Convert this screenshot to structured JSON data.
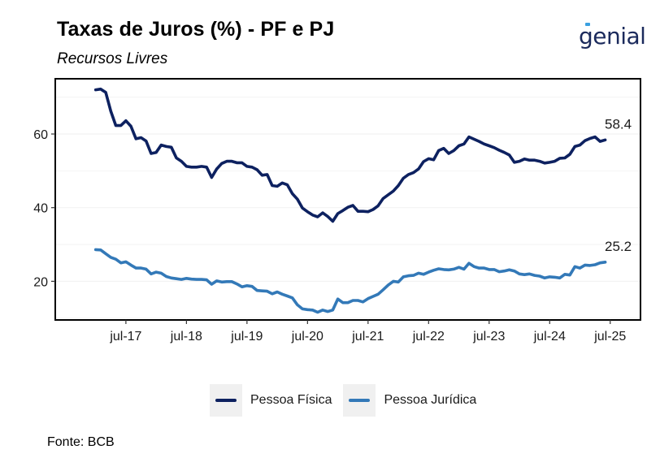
{
  "header": {
    "title": "Taxas de Juros (%) - PF e PJ",
    "subtitle": "Recursos Livres",
    "logo_text": "genial"
  },
  "footer": {
    "source": "Fonte: BCB"
  },
  "colors": {
    "pf": "#0d2160",
    "pj": "#3379b8",
    "grid": "#f2f2f2",
    "frame": "#000000",
    "legend_bg": "#f0f0f0"
  },
  "chart_data": {
    "type": "line",
    "title": "Taxas de Juros (%) - PF e PJ",
    "subtitle": "Recursos Livres",
    "x_unit": "month",
    "x_start": "2017-01",
    "x_end": "2025-07",
    "xlim": [
      "2016-05",
      "2026-01"
    ],
    "ylim": [
      9.5,
      75
    ],
    "y_ticks": [
      20,
      40,
      60
    ],
    "x_ticks": [
      "2017-07",
      "2018-07",
      "2019-07",
      "2020-07",
      "2021-07",
      "2022-07",
      "2023-07",
      "2024-07",
      "2025-07"
    ],
    "x_tick_labels": [
      "jul-17",
      "jul-18",
      "jul-19",
      "jul-20",
      "jul-21",
      "jul-22",
      "jul-23",
      "jul-24",
      "jul-25"
    ],
    "grid": true,
    "legend_position": "bottom",
    "series": [
      {
        "name": "Pessoa Física",
        "end_label": "58.4",
        "values": [
          72.0,
          72.2,
          71.3,
          66.2,
          62.3,
          62.3,
          63.6,
          62.1,
          58.7,
          59.0,
          58.1,
          54.7,
          55.0,
          57.0,
          56.6,
          56.4,
          53.5,
          52.6,
          51.2,
          51.0,
          51.0,
          51.2,
          51.0,
          48.2,
          50.5,
          52.0,
          52.6,
          52.6,
          52.2,
          52.2,
          51.2,
          51.0,
          50.3,
          48.8,
          49.0,
          46.0,
          45.8,
          46.7,
          46.2,
          43.8,
          42.3,
          39.9,
          38.9,
          38.0,
          37.5,
          38.6,
          37.6,
          36.3,
          38.4,
          39.2,
          40.1,
          40.6,
          39.0,
          39.0,
          38.9,
          39.5,
          40.5,
          42.5,
          43.5,
          44.5,
          46.0,
          48.0,
          49.0,
          49.5,
          50.5,
          52.5,
          53.3,
          53.0,
          55.5,
          56.1,
          54.7,
          55.5,
          56.8,
          57.3,
          59.2,
          58.6,
          58.0,
          57.3,
          56.8,
          56.3,
          55.6,
          55.0,
          54.3,
          52.3,
          52.6,
          53.2,
          52.9,
          52.9,
          52.6,
          52.1,
          52.3,
          52.6,
          53.4,
          53.5,
          54.5,
          56.6,
          57.0,
          58.2,
          58.8,
          59.2,
          58.0,
          58.4
        ]
      },
      {
        "name": "Pessoa Jurídica",
        "end_label": "25.2",
        "values": [
          28.6,
          28.5,
          27.5,
          26.5,
          26.0,
          25.0,
          25.3,
          24.4,
          23.6,
          23.6,
          23.3,
          22.0,
          22.5,
          22.2,
          21.3,
          20.9,
          20.7,
          20.5,
          20.8,
          20.6,
          20.5,
          20.5,
          20.4,
          19.2,
          20.1,
          19.8,
          19.9,
          19.9,
          19.3,
          18.5,
          18.8,
          18.6,
          17.5,
          17.4,
          17.3,
          16.6,
          17.1,
          16.5,
          16.0,
          15.5,
          13.6,
          12.5,
          12.3,
          12.2,
          11.6,
          12.2,
          11.8,
          12.2,
          15.2,
          14.2,
          14.2,
          14.8,
          14.8,
          14.4,
          15.3,
          15.9,
          16.5,
          17.7,
          19.0,
          20.0,
          19.8,
          21.2,
          21.5,
          21.6,
          22.2,
          21.9,
          22.5,
          23.0,
          23.4,
          23.2,
          23.1,
          23.3,
          23.8,
          23.3,
          24.9,
          24.0,
          23.6,
          23.6,
          23.2,
          23.2,
          22.6,
          22.8,
          23.1,
          22.8,
          22.0,
          21.8,
          22.0,
          21.6,
          21.4,
          20.9,
          21.2,
          21.1,
          20.9,
          21.9,
          21.7,
          24.0,
          23.6,
          24.4,
          24.3,
          24.5,
          25.0,
          25.2
        ]
      }
    ]
  }
}
